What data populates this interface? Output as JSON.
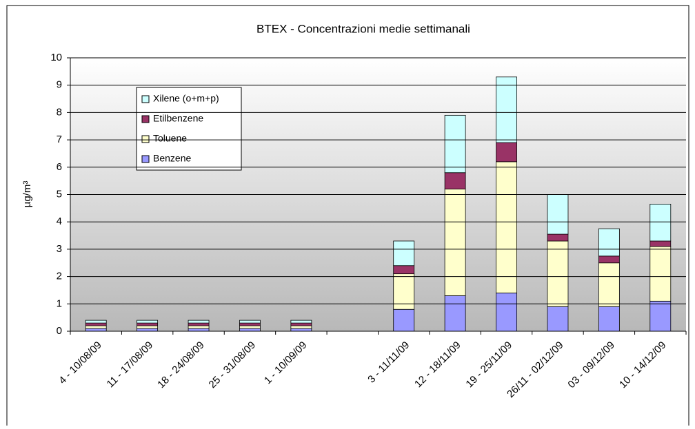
{
  "chart_data": {
    "type": "stacked_bar",
    "title": "BTEX - Concentrazioni medie settimanali",
    "y_label": "µg/m³",
    "categories": [
      "4 - 10/08/09",
      "11 - 17/08/09",
      "18 - 24/08/09",
      "25 - 31/08/09",
      "1 - 10/09/09",
      null,
      "3 - 11/11/09",
      "12 - 18/11/09",
      "19 - 25/11/09",
      "26/11 - 02/12/09",
      "03 - 09/12/09",
      "10 - 14/12/09"
    ],
    "series": [
      {
        "name": "Benzene",
        "color": "#9999ff",
        "values": [
          0.1,
          0.1,
          0.1,
          0.1,
          0.1,
          null,
          0.8,
          1.3,
          1.4,
          0.9,
          0.9,
          1.1
        ]
      },
      {
        "name": "Toluene",
        "color": "#ffffcc",
        "values": [
          0.1,
          0.1,
          0.1,
          0.1,
          0.1,
          null,
          1.3,
          3.9,
          4.8,
          2.4,
          1.6,
          2.0
        ]
      },
      {
        "name": "Etilbenzene",
        "color": "#993366",
        "values": [
          0.1,
          0.1,
          0.1,
          0.1,
          0.1,
          null,
          0.3,
          0.6,
          0.7,
          0.25,
          0.25,
          0.2
        ]
      },
      {
        "name": "Xilene (o+m+p)",
        "color": "#ccffff",
        "values": [
          0.1,
          0.1,
          0.1,
          0.1,
          0.1,
          null,
          0.9,
          2.1,
          2.4,
          1.45,
          1.0,
          1.35
        ]
      }
    ],
    "ylim": [
      0,
      10
    ],
    "yticks": [
      0,
      1,
      2,
      3,
      4,
      5,
      6,
      7,
      8,
      9,
      10
    ],
    "grid": true,
    "legend": "top-left"
  }
}
